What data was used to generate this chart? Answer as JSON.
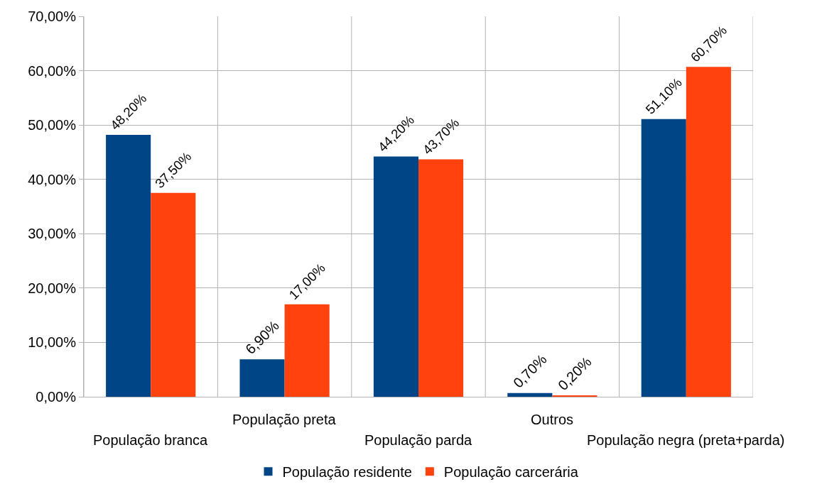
{
  "chart_data": {
    "type": "bar",
    "categories": [
      "População branca",
      "População preta",
      "População parda",
      "Outros",
      "População negra (preta+parda)"
    ],
    "series": [
      {
        "name": "População residente",
        "color": "#004586",
        "values": [
          48.2,
          6.9,
          44.2,
          0.7,
          51.1
        ],
        "value_labels": [
          "48,20%",
          "6,90%",
          "44,20%",
          "0,70%",
          "51,10%"
        ]
      },
      {
        "name": "População carcerária",
        "color": "#ff420e",
        "values": [
          37.5,
          17.0,
          43.7,
          0.2,
          60.7
        ],
        "value_labels": [
          "37,50%",
          "17,00%",
          "43,70%",
          "0,20%",
          "60,70%"
        ]
      }
    ],
    "ylim": [
      0,
      70
    ],
    "yticks": [
      {
        "value": 0,
        "label": "0,00%"
      },
      {
        "value": 10,
        "label": "10,00%"
      },
      {
        "value": 20,
        "label": "20,00%"
      },
      {
        "value": 30,
        "label": "30,00%"
      },
      {
        "value": 40,
        "label": "40,00%"
      },
      {
        "value": 50,
        "label": "50,00%"
      },
      {
        "value": 60,
        "label": "60,00%"
      },
      {
        "value": 70,
        "label": "70,00%"
      }
    ],
    "grid": true,
    "legend": "bottom"
  }
}
